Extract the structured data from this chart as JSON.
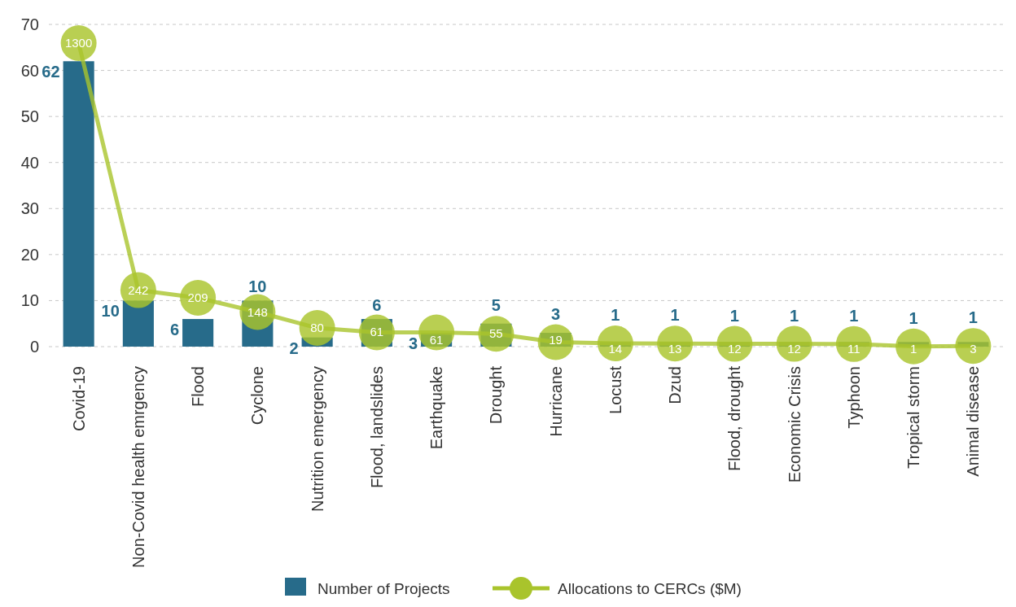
{
  "chart_data": {
    "type": "bar",
    "categories": [
      "Covid-19",
      "Non-Covid health emrgency",
      "Flood",
      "Cyclone",
      "Nutrition emergency",
      "Flood, landslides",
      "Earthquake",
      "Drought",
      "Hurricane",
      "Locust",
      "Dzud",
      "Flood, drought",
      "Economic Crisis",
      "Typhoon",
      "Tropical storm",
      "Animal disease"
    ],
    "series": [
      {
        "name": "Number of Projects",
        "color": "#276b8a",
        "values": [
          62,
          10,
          6,
          10,
          2,
          6,
          3,
          5,
          3,
          1,
          1,
          1,
          1,
          1,
          1,
          1
        ]
      },
      {
        "name": "Allocations to CERCs ($M)",
        "type": "line",
        "axis": "y2",
        "color": "#a9c42c",
        "values": [
          1300,
          242,
          209,
          148,
          80,
          61,
          61,
          55,
          19,
          14,
          13,
          12,
          12,
          11,
          1,
          3
        ]
      }
    ],
    "ylim": [
      0,
      70
    ],
    "yticks": [
      0,
      10,
      20,
      30,
      40,
      50,
      60,
      70
    ],
    "y2lim": [
      0,
      1380
    ],
    "tick_labels": "xy",
    "grid": "y",
    "legend": "bottom",
    "marker": "circle",
    "line_style": "solid",
    "data_labels": true
  }
}
